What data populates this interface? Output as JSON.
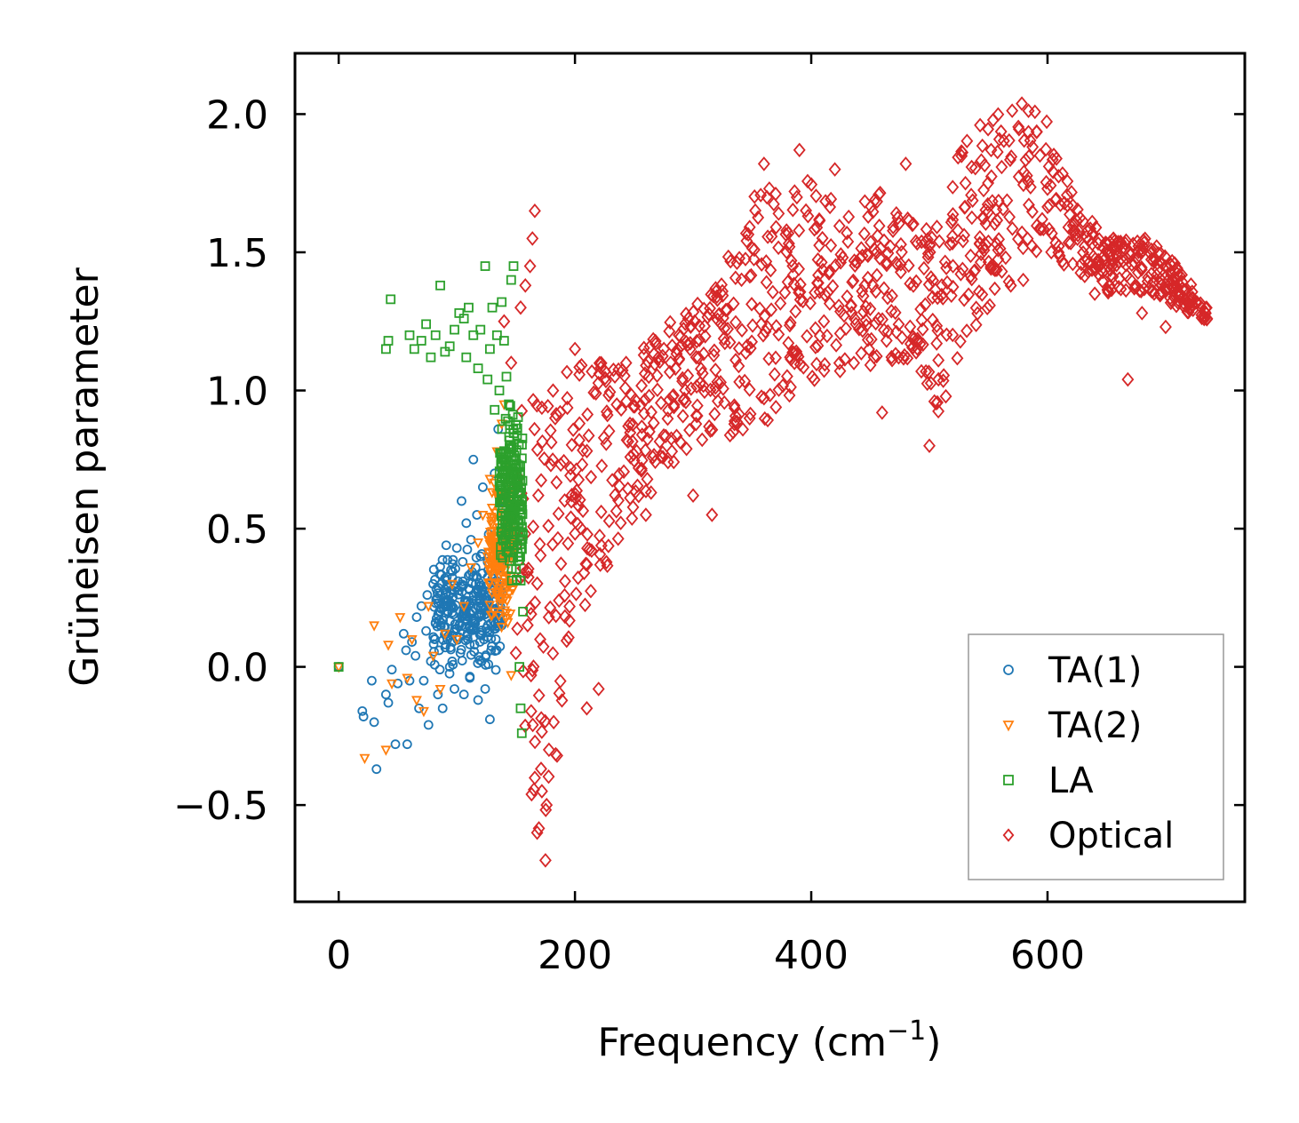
{
  "chart_data": {
    "type": "scatter",
    "title": "",
    "xlabel": "Frequency (cm",
    "xlabel_sup": "−1",
    "xlabel_tail": ")",
    "ylabel": "Grüneisen parameter",
    "xlim": [
      -37,
      767
    ],
    "ylim": [
      -0.85,
      2.22
    ],
    "xticks": [
      0,
      200,
      400,
      600
    ],
    "xtick_labels": [
      "0",
      "200",
      "400",
      "600"
    ],
    "yticks": [
      -0.5,
      0.0,
      0.5,
      1.0,
      1.5,
      2.0
    ],
    "ytick_labels": [
      "−0.5",
      "0.0",
      "0.5",
      "1.0",
      "1.5",
      "2.0"
    ],
    "legend_position": "lower-right",
    "series": [
      {
        "name": "TA(1)",
        "marker": "circle",
        "color": "#1f77b4",
        "points": [
          [
            0,
            0.0
          ],
          [
            20,
            -0.16
          ],
          [
            21,
            -0.18
          ],
          [
            28,
            -0.05
          ],
          [
            30,
            -0.2
          ],
          [
            32,
            -0.37
          ],
          [
            40,
            -0.1
          ],
          [
            42,
            -0.13
          ],
          [
            45,
            -0.01
          ],
          [
            48,
            -0.28
          ],
          [
            50,
            -0.06
          ],
          [
            55,
            0.12
          ],
          [
            57,
            0.06
          ],
          [
            58,
            -0.28
          ],
          [
            60,
            -0.05
          ],
          [
            62,
            0.09
          ],
          [
            65,
            0.04
          ],
          [
            66,
            0.18
          ],
          [
            68,
            -0.15
          ],
          [
            70,
            0.22
          ],
          [
            72,
            -0.05
          ],
          [
            74,
            0.13
          ],
          [
            75,
            0.26
          ],
          [
            76,
            -0.21
          ],
          [
            78,
            0.02
          ],
          [
            80,
            0.3
          ],
          [
            82,
            0.16
          ],
          [
            84,
            -0.1
          ],
          [
            85,
            0.06
          ],
          [
            86,
            0.2
          ],
          [
            88,
            -0.15
          ],
          [
            90,
            0.28
          ],
          [
            91,
            0.44
          ],
          [
            92,
            0.1
          ],
          [
            94,
            0.0
          ],
          [
            95,
            0.35
          ],
          [
            96,
            0.22
          ],
          [
            98,
            -0.08
          ],
          [
            100,
            0.43
          ],
          [
            101,
            0.31
          ],
          [
            102,
            0.15
          ],
          [
            103,
            0.05
          ],
          [
            104,
            0.6
          ],
          [
            105,
            0.38
          ],
          [
            106,
            -0.1
          ],
          [
            107,
            0.24
          ],
          [
            108,
            0.52
          ],
          [
            109,
            0.12
          ],
          [
            110,
            0.33
          ],
          [
            111,
            -0.04
          ],
          [
            112,
            0.46
          ],
          [
            113,
            0.2
          ],
          [
            114,
            0.75
          ],
          [
            115,
            0.08
          ],
          [
            116,
            0.3
          ],
          [
            117,
            0.55
          ],
          [
            118,
            -0.12
          ],
          [
            119,
            0.18
          ],
          [
            120,
            0.4
          ],
          [
            121,
            0.02
          ],
          [
            122,
            0.65
          ],
          [
            123,
            0.26
          ],
          [
            124,
            -0.08
          ],
          [
            125,
            0.14
          ],
          [
            126,
            0.38
          ],
          [
            127,
            0.48
          ],
          [
            128,
            -0.19
          ],
          [
            129,
            0.06
          ],
          [
            130,
            0.32
          ],
          [
            131,
            0.2
          ],
          [
            132,
            0.7
          ],
          [
            133,
            0.1
          ],
          [
            134,
            0.42
          ],
          [
            135,
            0.86
          ],
          [
            136,
            0.28
          ],
          [
            137,
            0.6
          ],
          [
            138,
            0.15
          ]
        ],
        "cloud": {
          "x_range": [
            80,
            138
          ],
          "y_center": 0.2,
          "y_spread": 0.28,
          "count": 260
        }
      },
      {
        "name": "TA(2)",
        "marker": "triangle-down",
        "color": "#ff7f0e",
        "points": [
          [
            0,
            0.0
          ],
          [
            22,
            -0.33
          ],
          [
            30,
            0.15
          ],
          [
            40,
            -0.3
          ],
          [
            42,
            0.08
          ],
          [
            45,
            -0.06
          ],
          [
            52,
            0.18
          ],
          [
            58,
            -0.04
          ],
          [
            62,
            0.1
          ],
          [
            66,
            -0.12
          ],
          [
            72,
            -0.16
          ],
          [
            76,
            0.22
          ],
          [
            80,
            0.04
          ],
          [
            86,
            -0.08
          ],
          [
            90,
            0.12
          ],
          [
            96,
            0.3
          ],
          [
            100,
            0.1
          ],
          [
            106,
            0.22
          ],
          [
            112,
            0.36
          ],
          [
            118,
            0.45
          ],
          [
            122,
            0.55
          ],
          [
            126,
            0.4
          ],
          [
            128,
            0.68
          ],
          [
            132,
            0.2
          ],
          [
            134,
            0.78
          ],
          [
            136,
            0.6
          ],
          [
            138,
            0.88
          ],
          [
            140,
            0.95
          ],
          [
            141,
            0.35
          ],
          [
            143,
            0.5
          ],
          [
            144,
            0.72
          ],
          [
            145,
            0.3
          ],
          [
            146,
            -0.03
          ]
        ],
        "cloud": {
          "x_range": [
            126,
            148
          ],
          "y_center": 0.42,
          "y_spread": 0.32,
          "count": 170
        }
      },
      {
        "name": "LA",
        "marker": "square",
        "color": "#2ca02c",
        "points": [
          [
            0,
            0.0
          ],
          [
            40,
            1.15
          ],
          [
            42,
            1.18
          ],
          [
            44,
            1.33
          ],
          [
            60,
            1.2
          ],
          [
            64,
            1.15
          ],
          [
            70,
            1.18
          ],
          [
            74,
            1.24
          ],
          [
            78,
            1.12
          ],
          [
            82,
            1.2
          ],
          [
            86,
            1.38
          ],
          [
            90,
            1.14
          ],
          [
            94,
            1.16
          ],
          [
            98,
            1.22
          ],
          [
            102,
            1.28
          ],
          [
            106,
            1.26
          ],
          [
            108,
            1.12
          ],
          [
            110,
            1.3
          ],
          [
            114,
            1.2
          ],
          [
            118,
            1.08
          ],
          [
            120,
            1.22
          ],
          [
            124,
            1.45
          ],
          [
            126,
            1.04
          ],
          [
            128,
            1.15
          ],
          [
            130,
            1.3
          ],
          [
            132,
            0.93
          ],
          [
            134,
            1.2
          ],
          [
            136,
            1.0
          ],
          [
            138,
            1.32
          ],
          [
            140,
            1.18
          ],
          [
            142,
            1.05
          ],
          [
            144,
            0.95
          ],
          [
            146,
            1.4
          ],
          [
            148,
            1.45
          ],
          [
            150,
            0.75
          ],
          [
            152,
            0.4
          ],
          [
            153,
            0.0
          ],
          [
            154,
            -0.15
          ],
          [
            155,
            -0.24
          ],
          [
            156,
            0.2
          ]
        ],
        "cloud": {
          "x_range": [
            136,
            156
          ],
          "y_center": 0.6,
          "y_spread": 0.4,
          "count": 200
        }
      },
      {
        "name": "Optical",
        "marker": "diamond",
        "color": "#d62728",
        "points": [
          [
            140,
            1.25
          ],
          [
            146,
            1.1
          ],
          [
            150,
            0.05
          ],
          [
            154,
            1.3
          ],
          [
            158,
            1.38
          ],
          [
            162,
            1.45
          ],
          [
            164,
            1.55
          ],
          [
            166,
            1.65
          ],
          [
            168,
            -0.6
          ],
          [
            172,
            -0.45
          ],
          [
            175,
            -0.7
          ],
          [
            176,
            -0.5
          ],
          [
            178,
            -0.3
          ],
          [
            182,
            -0.2
          ],
          [
            200,
            1.15
          ],
          [
            210,
            -0.15
          ],
          [
            220,
            -0.08
          ],
          [
            260,
            0.55
          ],
          [
            300,
            0.62
          ],
          [
            316,
            0.55
          ],
          [
            360,
            1.82
          ],
          [
            390,
            1.87
          ],
          [
            420,
            1.8
          ],
          [
            460,
            0.92
          ],
          [
            480,
            1.82
          ],
          [
            500,
            0.8
          ],
          [
            520,
            1.45
          ],
          [
            600,
            1.73
          ],
          [
            640,
            1.35
          ],
          [
            668,
            1.04
          ],
          [
            680,
            1.28
          ],
          [
            700,
            1.23
          ],
          [
            735,
            1.26
          ]
        ],
        "band": [
          [
            150,
            -0.2,
            1.1
          ],
          [
            175,
            -0.7,
            1.1
          ],
          [
            200,
            0.2,
            1.1
          ],
          [
            220,
            0.25,
            1.15
          ],
          [
            250,
            0.55,
            1.12
          ],
          [
            280,
            0.7,
            1.25
          ],
          [
            300,
            0.8,
            1.3
          ],
          [
            320,
            0.85,
            1.38
          ],
          [
            340,
            0.82,
            1.65
          ],
          [
            360,
            0.85,
            1.8
          ],
          [
            380,
            0.95,
            1.72
          ],
          [
            400,
            1.0,
            1.78
          ],
          [
            430,
            1.05,
            1.65
          ],
          [
            460,
            1.1,
            1.72
          ],
          [
            490,
            1.1,
            1.6
          ],
          [
            510,
            0.9,
            1.6
          ],
          [
            530,
            1.2,
            1.95
          ],
          [
            560,
            1.3,
            2.02
          ],
          [
            590,
            1.45,
            2.05
          ],
          [
            600,
            1.5,
            2.07
          ],
          [
            620,
            1.42,
            1.72
          ],
          [
            650,
            1.35,
            1.55
          ],
          [
            690,
            1.35,
            1.55
          ],
          [
            720,
            1.28,
            1.4
          ],
          [
            735,
            1.25,
            1.3
          ]
        ],
        "band_count": 1100
      }
    ]
  }
}
